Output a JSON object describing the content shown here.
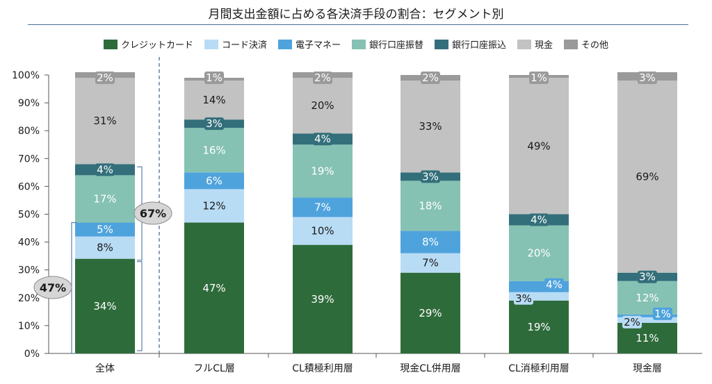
{
  "title": "月間支出金額に占める各決済手段の割合：セグメント別",
  "chart_data": {
    "type": "bar",
    "stacked": true,
    "title": "月間支出金額に占める各決済手段の割合：セグメント別",
    "xlabel": "",
    "ylabel": "",
    "ylim": [
      0,
      100
    ],
    "yticks": [
      "0%",
      "10%",
      "20%",
      "30%",
      "40%",
      "50%",
      "60%",
      "70%",
      "80%",
      "90%",
      "100%"
    ],
    "legend_position": "top",
    "categories": [
      "全体",
      "フルCL層",
      "CL積極利用層",
      "現金CL併用層",
      "CL消極利用層",
      "現金層"
    ],
    "series": [
      {
        "name": "クレジットカード",
        "color": "#2e6b3b",
        "values": [
          34,
          47,
          39,
          29,
          19,
          11
        ],
        "labels": [
          "34%",
          "47%",
          "39%",
          "29%",
          "19%",
          "11%"
        ]
      },
      {
        "name": "コード決済",
        "color": "#b9dcf5",
        "values": [
          8,
          12,
          10,
          7,
          3,
          2
        ],
        "labels": [
          "8%",
          "12%",
          "10%",
          "7%",
          "3%",
          "2%"
        ]
      },
      {
        "name": "電子マネー",
        "color": "#4fa3dd",
        "values": [
          5,
          6,
          7,
          8,
          4,
          1
        ],
        "labels": [
          "5%",
          "6%",
          "7%",
          "8%",
          "4%",
          "1%"
        ]
      },
      {
        "name": "銀行口座振替",
        "color": "#86c2b3",
        "values": [
          17,
          16,
          19,
          18,
          20,
          12
        ],
        "labels": [
          "17%",
          "16%",
          "19%",
          "18%",
          "20%",
          "12%"
        ]
      },
      {
        "name": "銀行口座振込",
        "color": "#336f7a",
        "values": [
          4,
          3,
          4,
          3,
          4,
          3
        ],
        "labels": [
          "4%",
          "3%",
          "4%",
          "3%",
          "4%",
          "3%"
        ]
      },
      {
        "name": "現金",
        "color": "#c2c2c2",
        "values": [
          31,
          14,
          20,
          33,
          49,
          69
        ],
        "labels": [
          "31%",
          "14%",
          "20%",
          "33%",
          "49%",
          "69%"
        ]
      },
      {
        "name": "その他",
        "color": "#9a9a9a",
        "values": [
          2,
          1,
          2,
          2,
          1,
          3
        ],
        "labels": [
          "2%",
          "1%",
          "2%",
          "2%",
          "1%",
          "3%"
        ]
      }
    ],
    "annotations": [
      {
        "text": "47%",
        "range": [
          0,
          47
        ],
        "category": "全体"
      },
      {
        "text": "67%",
        "range": [
          0,
          67
        ],
        "category": "全体"
      }
    ]
  }
}
